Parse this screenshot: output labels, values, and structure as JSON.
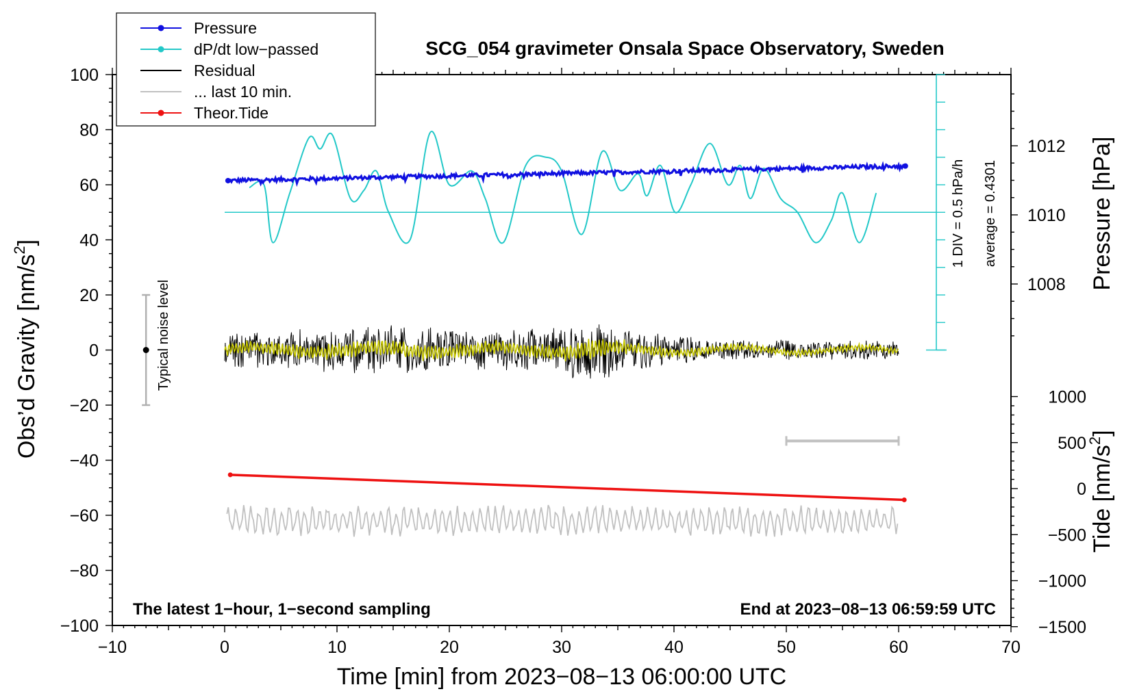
{
  "chart_data": {
    "type": "line",
    "title": "SCG_054 gravimeter Onsala Space Observatory, Sweden",
    "xlabel": "Time [min] from 2023−08−13 06:00:00 UTC",
    "ylabel_left": "Obs’d Gravity [nm/s²]",
    "ylabel_left_base": "Obs’d Gravity [nm/s",
    "ylabel_pressure": "Pressure [hPa]",
    "ylabel_tide": "Tide [nm/s²]",
    "ylabel_tide_base": "Tide [nm/s",
    "superscript": "2",
    "xlim": [
      -10,
      70
    ],
    "ylim_left": [
      -100,
      100
    ],
    "x_ticks": [
      "−10",
      "0",
      "10",
      "20",
      "30",
      "40",
      "50",
      "60",
      "70"
    ],
    "y_ticks": [
      "100",
      "80",
      "60",
      "40",
      "20",
      "0",
      "−20",
      "−40",
      "−60",
      "−80",
      "−100"
    ],
    "pressure_ticks": [
      "1012",
      "1010",
      "1008"
    ],
    "tide_ticks": [
      "1000",
      "500",
      "0",
      "−500",
      "−1000",
      "−1500"
    ],
    "bottom_left_note": "The latest 1−hour, 1−second sampling",
    "bottom_right_note": "End at 2023−08−13 06:59:59 UTC",
    "noise_label": "Typical noise level",
    "div_label": "1 DIV = 0.5 hPa/h",
    "average_label": "average = 0.4301",
    "legend": [
      {
        "label": "Pressure",
        "color": "#1010e0",
        "marker": true
      },
      {
        "label": "dP/dt low−passed",
        "color": "#22c8c8",
        "marker": true
      },
      {
        "label": "Residual",
        "color": "#000000",
        "marker": false
      },
      {
        "label": "... last 10 min.",
        "color": "#c0c0c0",
        "marker": false
      },
      {
        "label": "Theor.Tide",
        "color": "#ee1111",
        "marker": true
      }
    ],
    "series": [
      {
        "name": "Pressure",
        "color": "#1010e0",
        "x_range": [
          0.3,
          60.6
        ],
        "y_start": 61.5,
        "y_end": 66.8,
        "unit": "nm/s2 plot units"
      },
      {
        "name": "dP/dt low−passed",
        "color": "#22c8c8",
        "baseline": 50,
        "x": [
          2.2,
          3.5,
          4.3,
          5.8,
          7.5,
          8.5,
          9.6,
          11.2,
          12.4,
          13.5,
          14.6,
          16.5,
          18.3,
          20.0,
          22.0,
          23.2,
          24.8,
          26.8,
          28.6,
          30.0,
          31.8,
          33.6,
          35.2,
          36.8,
          37.6,
          38.8,
          40.1,
          41.5,
          43.2,
          44.8,
          45.9,
          46.8,
          48.0,
          49.5,
          51.0,
          52.6,
          54.0,
          55.0,
          56.5,
          58.0
        ],
        "y": [
          59,
          60,
          39,
          57,
          77,
          73,
          78,
          55,
          58,
          65,
          50,
          40,
          79,
          60,
          65,
          55,
          39,
          67,
          70,
          65,
          42,
          72,
          58,
          64,
          56,
          67,
          50,
          60,
          75,
          60,
          67,
          55,
          66,
          55,
          50,
          39,
          47,
          57,
          39,
          57
        ]
      },
      {
        "name": "Residual",
        "color": "#000000",
        "x_range": [
          0,
          60
        ],
        "center": 0,
        "amplitude_profile": [
          [
            0,
            7
          ],
          [
            10,
            9
          ],
          [
            15,
            10
          ],
          [
            22,
            8
          ],
          [
            30,
            9
          ],
          [
            32.5,
            14
          ],
          [
            36,
            8
          ],
          [
            42,
            5
          ],
          [
            50,
            4
          ],
          [
            60,
            4
          ]
        ]
      },
      {
        "name": "Residual smoothed",
        "color": "#c8c800",
        "x_range": [
          0,
          60
        ],
        "center": 0
      },
      {
        "name": "... last 10 min.",
        "color": "#c0c0c0",
        "x_range": [
          0.2,
          59.9
        ],
        "center": -62,
        "amplitude": 6
      },
      {
        "name": "Theor.Tide",
        "color": "#ee1111",
        "x_range": [
          0.5,
          60.5
        ],
        "y_start": -45.3,
        "y_end": -54.4
      }
    ],
    "noise_bar": {
      "x": -7,
      "y_center": 0,
      "y_half": 20
    },
    "time_scale_bar": {
      "x_start": 50,
      "x_end": 60,
      "y": -33
    }
  }
}
